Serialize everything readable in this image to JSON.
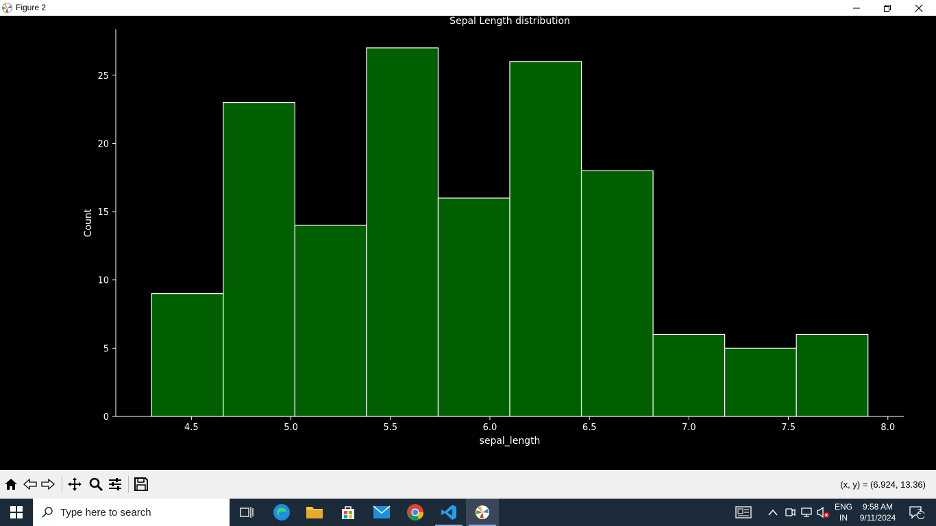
{
  "window": {
    "title": "Figure 2"
  },
  "chart_data": {
    "type": "bar",
    "title": "Sepal Length distribution",
    "xlabel": "sepal_length",
    "ylabel": "Count",
    "bins": [
      {
        "start": 4.3,
        "end": 4.66,
        "count": 9
      },
      {
        "start": 4.66,
        "end": 5.02,
        "count": 23
      },
      {
        "start": 5.02,
        "end": 5.38,
        "count": 14
      },
      {
        "start": 5.38,
        "end": 5.74,
        "count": 27
      },
      {
        "start": 5.74,
        "end": 6.1,
        "count": 16
      },
      {
        "start": 6.1,
        "end": 6.46,
        "count": 26
      },
      {
        "start": 6.46,
        "end": 6.82,
        "count": 18
      },
      {
        "start": 6.82,
        "end": 7.18,
        "count": 6
      },
      {
        "start": 7.18,
        "end": 7.54,
        "count": 5
      },
      {
        "start": 7.54,
        "end": 7.9,
        "count": 6
      }
    ],
    "xlim": [
      4.12,
      8.08
    ],
    "ylim": [
      0,
      28.35
    ],
    "xticks": [
      "4.5",
      "5.0",
      "5.5",
      "6.0",
      "6.5",
      "7.0",
      "7.5",
      "8.0"
    ],
    "yticks": [
      "0",
      "5",
      "10",
      "15",
      "20",
      "25"
    ],
    "bar_color": "#005f00",
    "edge_color": "#ffffff",
    "background": "#000000",
    "grid": false,
    "spines": [
      "left",
      "bottom"
    ]
  },
  "toolbar": {
    "tools": [
      "home-icon",
      "back-icon",
      "forward-icon",
      "pan-icon",
      "zoom-icon",
      "configure-subplots-icon",
      "save-icon"
    ],
    "coords": "(x, y) = (6.924, 13.36)"
  },
  "taskbar": {
    "search_placeholder": "Type here to search",
    "language": "ENG",
    "region": "IN",
    "time": "9:58 AM",
    "date": "9/11/2024",
    "notifications": "2"
  }
}
